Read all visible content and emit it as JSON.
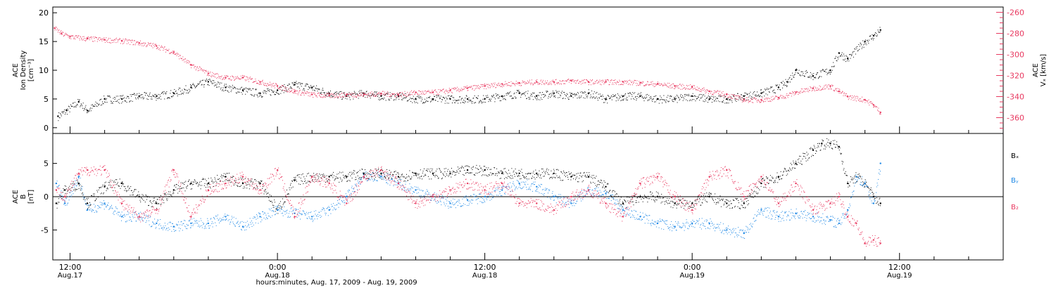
{
  "colors": {
    "black": "#000000",
    "red": "#e8385f",
    "blue": "#1e88e5",
    "axis": "#000000"
  },
  "time_axis": {
    "range_hours": [
      -1,
      54
    ],
    "label": "hours:minutes, Aug. 17, 2009 - Aug. 19, 2009",
    "ticks": [
      {
        "hour": 0,
        "time": "12:00",
        "date": "Aug.17"
      },
      {
        "hour": 12,
        "time": "0:00",
        "date": "Aug.18"
      },
      {
        "hour": 24,
        "time": "12:00",
        "date": "Aug.18"
      },
      {
        "hour": 36,
        "time": "0:00",
        "date": "Aug.19"
      },
      {
        "hour": 48,
        "time": "12:00",
        "date": "Aug.19"
      }
    ],
    "minor_step_hours": 2
  },
  "chart_data": [
    {
      "type": "scatter",
      "ylabel_lines": [
        "ACE",
        "Ion Density",
        "[cm⁻³]"
      ],
      "y2label_lines": [
        "ACE",
        "Vₓ [km/s]"
      ],
      "ylim": [
        -1,
        21
      ],
      "y_ticks": [
        0,
        5,
        10,
        15,
        20
      ],
      "y2lim": [
        -375,
        -255
      ],
      "y2_ticks": [
        -260,
        -280,
        -300,
        -320,
        -340,
        -360
      ],
      "series": [
        {
          "axis": "left",
          "color": "#000000",
          "x": [
            -0.7,
            -0.2,
            0.5,
            1,
            2,
            3,
            4,
            5,
            6,
            7,
            8,
            9,
            10,
            11,
            12,
            13,
            14,
            15,
            16,
            17,
            18,
            19,
            20,
            21,
            22,
            23,
            24,
            25,
            26,
            27,
            28,
            29,
            30,
            31,
            32,
            33,
            34,
            35,
            36,
            37,
            38,
            39,
            40,
            41,
            41.5,
            42,
            43,
            44,
            44.5,
            45,
            46,
            46.5,
            46.9
          ],
          "y": [
            2,
            3,
            4.5,
            3,
            5,
            5,
            5.5,
            5.5,
            6,
            7,
            8,
            7,
            6.5,
            6,
            6.5,
            7.5,
            7,
            6,
            5.5,
            6,
            5.5,
            5.5,
            5,
            5,
            5,
            5,
            5,
            5.5,
            6,
            5.5,
            6,
            5.5,
            6,
            5,
            5.5,
            5.5,
            5,
            5,
            5.5,
            5,
            5,
            5.5,
            6,
            7,
            8,
            10,
            9,
            10,
            13,
            12,
            15,
            16,
            17
          ]
        },
        {
          "axis": "right",
          "color": "#e8385f",
          "x": [
            -0.9,
            -0.5,
            0,
            1,
            2,
            3,
            4,
            5,
            6,
            7,
            8,
            9,
            10,
            11,
            12,
            13,
            14,
            15,
            16,
            17,
            18,
            19,
            20,
            21,
            22,
            23,
            24,
            25,
            26,
            27,
            28,
            29,
            30,
            31,
            32,
            33,
            34,
            35,
            36,
            37,
            38,
            39,
            40,
            41,
            42,
            43,
            44,
            44.5,
            45,
            46,
            46.5,
            46.9
          ],
          "y": [
            -275,
            -280,
            -283,
            -285,
            -286,
            -287,
            -289,
            -292,
            -298,
            -310,
            -318,
            -322,
            -322,
            -326,
            -330,
            -335,
            -338,
            -339,
            -338,
            -338,
            -337,
            -338,
            -336,
            -336,
            -334,
            -332,
            -330,
            -328,
            -327,
            -326,
            -326,
            -325,
            -326,
            -326,
            -326,
            -327,
            -328,
            -330,
            -331,
            -335,
            -338,
            -343,
            -343,
            -341,
            -336,
            -332,
            -330,
            -335,
            -340,
            -343,
            -348,
            -355
          ]
        }
      ]
    },
    {
      "type": "scatter",
      "ylabel_lines": [
        "ACE",
        "B",
        "[nT]"
      ],
      "ylim": [
        -9.5,
        9.5
      ],
      "y_ticks": [
        5,
        0,
        -5
      ],
      "zero_line": true,
      "series": [
        {
          "name": "Bₓ",
          "color": "#000000",
          "x": [
            -0.8,
            -0.3,
            0.5,
            1,
            2,
            3,
            4,
            5,
            6,
            7,
            8,
            9,
            10,
            11,
            12,
            13,
            14,
            15,
            16,
            17,
            18,
            19,
            20,
            21,
            22,
            23,
            24,
            25,
            26,
            27,
            28,
            29,
            30,
            31,
            32,
            33,
            34,
            35,
            36,
            37,
            38,
            39,
            40,
            41,
            42,
            43,
            43.5,
            44,
            44.5,
            45,
            45.5,
            46,
            46.5,
            46.9
          ],
          "y": [
            -1,
            1,
            2,
            -1,
            1.5,
            2,
            0,
            -1,
            1,
            2,
            2,
            3,
            2,
            2,
            -2,
            2.5,
            3,
            3,
            3,
            3.5,
            3.5,
            3,
            3.5,
            3.5,
            3.5,
            4,
            4,
            3.5,
            3.5,
            3.5,
            3.5,
            3,
            3,
            1.5,
            -1,
            0,
            0,
            -1,
            -1,
            0,
            -1,
            -1,
            2,
            3,
            5,
            7,
            8,
            8,
            7.5,
            2,
            3,
            2,
            0,
            -1
          ]
        },
        {
          "name": "Bᵧ",
          "color": "#1e88e5",
          "x": [
            -0.8,
            -0.3,
            0.5,
            1,
            2,
            3,
            4,
            5,
            6,
            7,
            8,
            9,
            10,
            11,
            12,
            13,
            14,
            15,
            16,
            17,
            18,
            19,
            20,
            21,
            22,
            23,
            24,
            25,
            26,
            27,
            28,
            29,
            30,
            31,
            32,
            33,
            34,
            35,
            36,
            37,
            38,
            39,
            40,
            41,
            42,
            43,
            44,
            44.5,
            45,
            45.5,
            46,
            46.5,
            46.9
          ],
          "y": [
            2,
            -1,
            3,
            -2,
            -1,
            -3,
            -3,
            -4,
            -4.5,
            -4,
            -4,
            -3,
            -4.5,
            -3,
            -2,
            -2.5,
            -3,
            -2,
            0,
            3,
            3,
            2,
            1,
            0,
            -1,
            -0.5,
            0,
            1,
            2,
            1.5,
            0,
            -1,
            1,
            0.5,
            -2,
            -3,
            -4,
            -4.5,
            -4,
            -4,
            -5,
            -5.5,
            -2,
            -3,
            -2.5,
            -3,
            -3.5,
            -4,
            -2,
            3,
            2,
            -1,
            5
          ]
        },
        {
          "name": "B₂",
          "color": "#e8385f",
          "x": [
            -0.8,
            -0.3,
            0.5,
            1,
            2,
            3,
            4,
            5,
            6,
            7,
            8,
            9,
            10,
            11,
            12,
            13,
            14,
            15,
            16,
            17,
            18,
            19,
            20,
            21,
            22,
            23,
            24,
            25,
            26,
            27,
            28,
            29,
            30,
            31,
            32,
            33,
            34,
            35,
            36,
            37,
            38,
            39,
            40,
            41,
            42,
            43,
            44,
            44.5,
            45,
            45.5,
            46,
            46.5,
            46.9
          ],
          "y": [
            1,
            0,
            3.5,
            4,
            4,
            -1,
            -3,
            -2,
            4,
            -3,
            1,
            2,
            3,
            1,
            4,
            -3,
            3,
            2,
            -1,
            3,
            4,
            2,
            -1,
            0,
            1,
            2,
            1,
            2,
            -1,
            -1,
            -2,
            0,
            1,
            -1,
            -3,
            2,
            3,
            0,
            -2,
            3,
            4,
            0,
            3,
            -1,
            2,
            -2,
            -1,
            0,
            -3,
            -4,
            -7,
            -6.5,
            -7
          ]
        }
      ],
      "legend": [
        "Bₓ",
        "Bᵧ",
        "B₂"
      ]
    }
  ]
}
